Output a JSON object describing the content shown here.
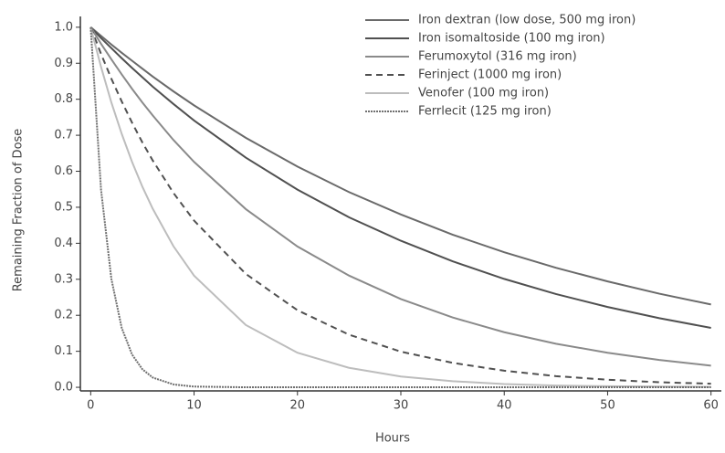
{
  "chart_data": {
    "type": "line",
    "xlabel": "Hours",
    "ylabel": "Remaining Fraction of Dose",
    "x": [
      0,
      1,
      2,
      3,
      4,
      5,
      6,
      8,
      10,
      15,
      20,
      25,
      30,
      35,
      40,
      45,
      50,
      55,
      60
    ],
    "series": [
      {
        "name": "Iron dextran (low dose, 500 mg iron)",
        "color": "#6a6a6a",
        "dash": "none",
        "values": [
          1,
          0.976,
          0.952,
          0.929,
          0.907,
          0.885,
          0.863,
          0.822,
          0.783,
          0.693,
          0.613,
          0.542,
          0.48,
          0.424,
          0.375,
          0.332,
          0.294,
          0.26,
          0.23
        ]
      },
      {
        "name": "Iron isomaltoside (100 mg iron)",
        "color": "#505050",
        "dash": "none",
        "values": [
          1,
          0.97,
          0.942,
          0.914,
          0.887,
          0.861,
          0.835,
          0.787,
          0.741,
          0.638,
          0.549,
          0.472,
          0.407,
          0.35,
          0.301,
          0.259,
          0.223,
          0.192,
          0.165
        ]
      },
      {
        "name": "Ferumoxytol (316 mg iron)",
        "color": "#8a8a8a",
        "dash": "none",
        "values": [
          1,
          0.954,
          0.911,
          0.869,
          0.829,
          0.791,
          0.755,
          0.687,
          0.626,
          0.495,
          0.391,
          0.31,
          0.245,
          0.194,
          0.153,
          0.121,
          0.096,
          0.076,
          0.06
        ]
      },
      {
        "name": "Ferinject (1000 mg iron)",
        "color": "#505050",
        "dash": "7,5",
        "values": [
          1,
          0.926,
          0.857,
          0.794,
          0.735,
          0.68,
          0.63,
          0.54,
          0.463,
          0.315,
          0.214,
          0.146,
          0.099,
          0.068,
          0.046,
          0.031,
          0.021,
          0.014,
          0.01
        ]
      },
      {
        "name": "Venofer (100 mg iron)",
        "color": "#bdbdbd",
        "dash": "none",
        "values": [
          1,
          0.89,
          0.791,
          0.704,
          0.626,
          0.557,
          0.496,
          0.392,
          0.31,
          0.173,
          0.096,
          0.054,
          0.03,
          0.017,
          0.009,
          0.005,
          0.003,
          0.002,
          0.001
        ]
      },
      {
        "name": "Ferrlecit (125 mg iron)",
        "color": "#707070",
        "dash": "2,1",
        "values": [
          1,
          0.549,
          0.301,
          0.165,
          0.091,
          0.05,
          0.027,
          0.008,
          0.002,
          0,
          0,
          0,
          0,
          0,
          0,
          0,
          0,
          0,
          0
        ]
      }
    ],
    "xlim": [
      -1,
      61
    ],
    "ylim": [
      -0.01,
      1.03
    ],
    "xticks": [
      0,
      10,
      20,
      30,
      40,
      50,
      60
    ],
    "yticks": [
      {
        "value": 0,
        "label": "0.0"
      },
      0.1,
      0.2,
      0.3,
      0.4,
      0.5,
      0.6,
      0.7,
      0.8,
      0.9,
      {
        "value": 1,
        "label": "1.0"
      }
    ],
    "legend": "top-right"
  }
}
